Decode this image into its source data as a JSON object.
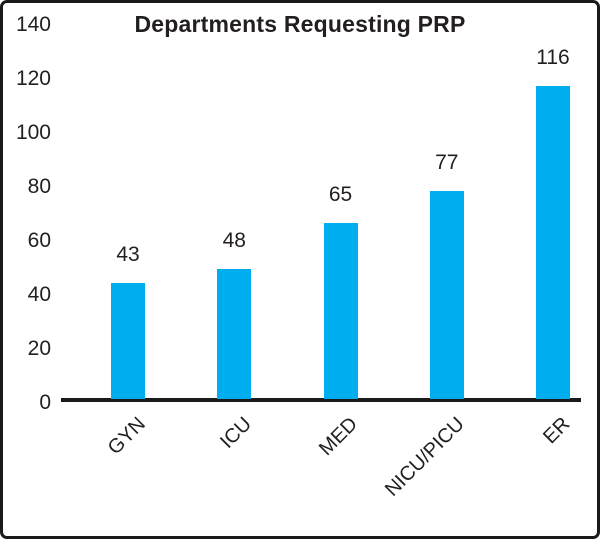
{
  "chart_data": {
    "type": "bar",
    "title": "Departments Requesting PRP",
    "categories": [
      "GYN",
      "ICU",
      "MED",
      "NICU/PICU",
      "ER"
    ],
    "values": [
      43,
      48,
      65,
      77,
      116
    ],
    "xlabel": "",
    "ylabel": "",
    "ylim": [
      0,
      140
    ],
    "ytick_step": 20,
    "yticks": [
      0,
      20,
      40,
      60,
      80,
      100,
      120,
      140
    ],
    "grid": false,
    "legend": "none",
    "value_labels_shown": true,
    "x_label_rotation_deg": 45,
    "colors": {
      "bar": "#00AEEF",
      "text": "#231F20",
      "border": "#1A1A1A",
      "background": "#FFFFFF"
    }
  }
}
